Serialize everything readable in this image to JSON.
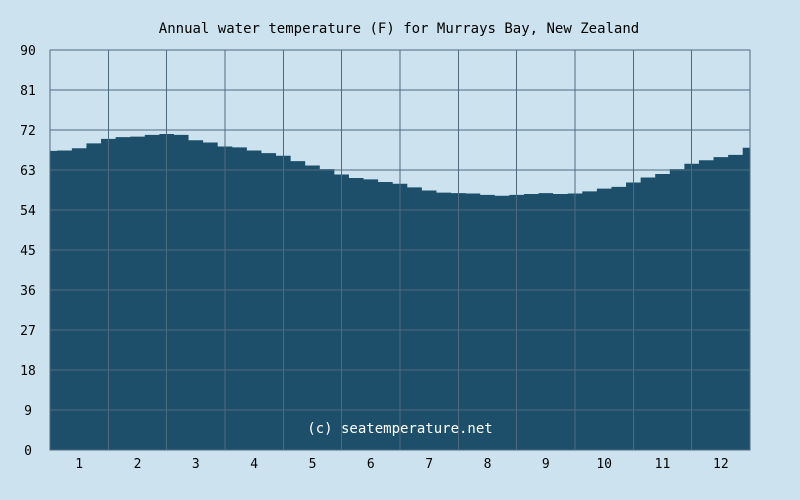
{
  "chart_data": {
    "type": "area",
    "title": "Annual water temperature (F) for Murrays Bay, New Zealand",
    "xlabel": "",
    "ylabel": "",
    "watermark": "(c) seatemperature.net",
    "x_ticks": [
      "1",
      "2",
      "3",
      "4",
      "5",
      "6",
      "7",
      "8",
      "9",
      "10",
      "11",
      "12"
    ],
    "y_ticks": [
      "0",
      "9",
      "18",
      "27",
      "36",
      "45",
      "54",
      "63",
      "72",
      "81",
      "90"
    ],
    "ylim": [
      0,
      90
    ],
    "xlim": [
      0.5,
      12.5
    ],
    "grid": true,
    "x": [
      0.5,
      0.75,
      1.0,
      1.25,
      1.5,
      1.75,
      2.0,
      2.25,
      2.5,
      2.75,
      3.0,
      3.25,
      3.5,
      3.75,
      4.0,
      4.25,
      4.5,
      4.75,
      5.0,
      5.25,
      5.5,
      5.75,
      6.0,
      6.25,
      6.5,
      6.75,
      7.0,
      7.25,
      7.5,
      7.75,
      8.0,
      8.25,
      8.5,
      8.75,
      9.0,
      9.25,
      9.5,
      9.75,
      10.0,
      10.25,
      10.5,
      10.75,
      11.0,
      11.25,
      11.5,
      11.75,
      12.0,
      12.25,
      12.5
    ],
    "y": [
      67.3,
      67.4,
      67.9,
      69.0,
      70.0,
      70.4,
      70.5,
      70.9,
      71.1,
      70.9,
      69.7,
      69.2,
      68.3,
      68.1,
      67.4,
      66.8,
      66.2,
      65.0,
      64.0,
      63.2,
      62.0,
      61.2,
      60.9,
      60.3,
      59.9,
      59.1,
      58.4,
      57.9,
      57.8,
      57.7,
      57.4,
      57.2,
      57.4,
      57.6,
      57.8,
      57.6,
      57.7,
      58.2,
      58.8,
      59.2,
      60.2,
      61.3,
      62.1,
      63.2,
      64.4,
      65.2,
      65.9,
      66.4,
      68.0
    ],
    "colors": {
      "background": "#cce3ef",
      "area": "#1d4f6b",
      "grid": "#4e6a80",
      "watermark": "#ffffff"
    }
  }
}
